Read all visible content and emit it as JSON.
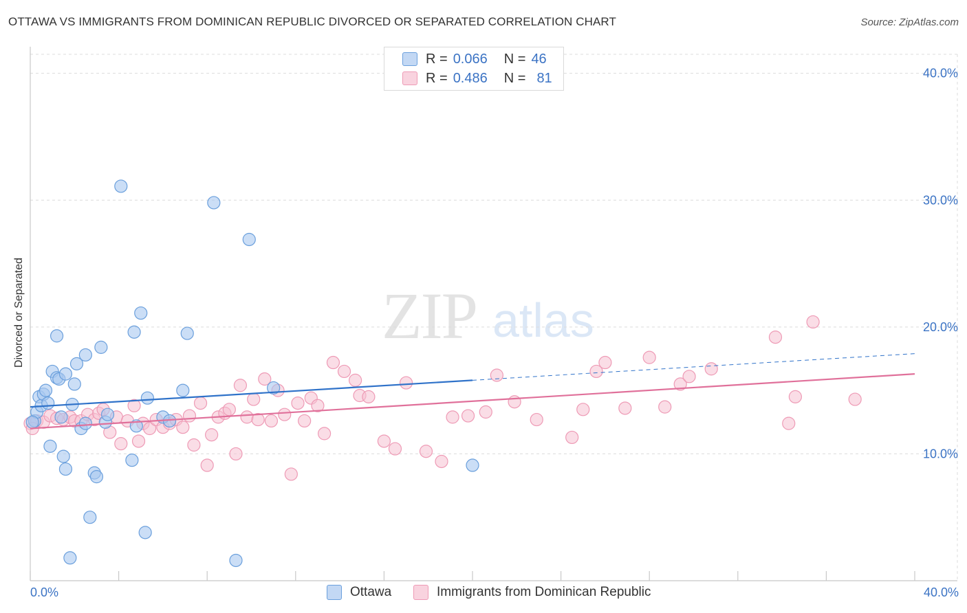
{
  "title": "OTTAWA VS IMMIGRANTS FROM DOMINICAN REPUBLIC DIVORCED OR SEPARATED CORRELATION CHART",
  "source": "Source: ZipAtlas.com",
  "watermark": {
    "zip": "ZIP",
    "atlas": "atlas"
  },
  "colors": {
    "ottawa_fill": "#a9c8f0",
    "ottawa_stroke": "#6a9fdc",
    "ottawa_line": "#2f72c9",
    "dom_fill": "#f6c1d1",
    "dom_stroke": "#ee9ab5",
    "dom_line": "#e0709a",
    "axis_label": "#3b73c4",
    "grid": "#dcdcdc"
  },
  "legend": {
    "rows": [
      {
        "r_label": "R =",
        "r_value": "0.066",
        "n_label": "N =",
        "n_value": "46"
      },
      {
        "r_label": "R =",
        "r_value": "0.486",
        "n_label": "N =",
        "n_value": "81"
      }
    ]
  },
  "bottom_legend": [
    "Ottawa",
    "Immigrants from Dominican Republic"
  ],
  "chart_data": {
    "type": "scatter",
    "title": "OTTAWA VS IMMIGRANTS FROM DOMINICAN REPUBLIC DIVORCED OR SEPARATED CORRELATION CHART",
    "xlabel": "",
    "ylabel": "Divorced or Separated",
    "x_tick_labels": [
      "0.0%",
      "40.0%"
    ],
    "y_tick_labels": [
      "10.0%",
      "20.0%",
      "30.0%",
      "40.0%"
    ],
    "y_ticks": [
      10,
      20,
      30,
      40
    ],
    "xlim": [
      0,
      40
    ],
    "ylim": [
      0,
      41.5
    ],
    "grid": true,
    "legend_position": "top-center",
    "series": [
      {
        "name": "Ottawa",
        "r": 0.066,
        "n": 46,
        "trend": {
          "x": [
            0,
            20
          ],
          "y": [
            13.7,
            15.8
          ]
        },
        "trend_dashed": {
          "x": [
            20,
            40
          ],
          "y": [
            15.8,
            17.9
          ]
        },
        "points": [
          [
            0.2,
            12.6
          ],
          [
            0.3,
            13.3
          ],
          [
            0.4,
            14.5
          ],
          [
            0.5,
            13.8
          ],
          [
            0.6,
            14.7
          ],
          [
            0.7,
            15.0
          ],
          [
            0.8,
            14.0
          ],
          [
            0.9,
            10.6
          ],
          [
            1.0,
            16.5
          ],
          [
            1.2,
            16.0
          ],
          [
            1.2,
            19.3
          ],
          [
            1.3,
            15.9
          ],
          [
            1.4,
            12.9
          ],
          [
            1.5,
            9.8
          ],
          [
            1.6,
            8.8
          ],
          [
            1.6,
            16.3
          ],
          [
            1.8,
            1.8
          ],
          [
            1.9,
            13.9
          ],
          [
            2.0,
            15.5
          ],
          [
            2.1,
            17.1
          ],
          [
            2.3,
            12.0
          ],
          [
            2.5,
            17.8
          ],
          [
            2.5,
            12.4
          ],
          [
            2.7,
            5.0
          ],
          [
            2.9,
            8.5
          ],
          [
            3.0,
            8.2
          ],
          [
            3.2,
            18.4
          ],
          [
            3.4,
            12.5
          ],
          [
            3.5,
            13.1
          ],
          [
            4.1,
            31.1
          ],
          [
            4.6,
            9.5
          ],
          [
            4.7,
            19.6
          ],
          [
            4.8,
            12.2
          ],
          [
            5.0,
            21.1
          ],
          [
            5.2,
            3.8
          ],
          [
            5.3,
            14.4
          ],
          [
            6.0,
            12.9
          ],
          [
            6.3,
            12.6
          ],
          [
            6.9,
            15.0
          ],
          [
            7.1,
            19.5
          ],
          [
            8.3,
            29.8
          ],
          [
            9.3,
            1.6
          ],
          [
            9.9,
            26.9
          ],
          [
            11.0,
            15.2
          ],
          [
            20.0,
            9.1
          ],
          [
            0.1,
            12.5
          ]
        ]
      },
      {
        "name": "Immigrants from Dominican Republic",
        "r": 0.486,
        "n": 81,
        "trend": {
          "x": [
            0,
            40
          ],
          "y": [
            12.0,
            16.3
          ]
        },
        "points": [
          [
            0.0,
            12.4
          ],
          [
            0.3,
            12.6
          ],
          [
            0.6,
            12.5
          ],
          [
            0.9,
            13.0
          ],
          [
            1.2,
            12.8
          ],
          [
            1.5,
            12.7
          ],
          [
            1.8,
            12.9
          ],
          [
            2.0,
            12.6
          ],
          [
            2.3,
            12.6
          ],
          [
            2.6,
            13.1
          ],
          [
            2.9,
            12.7
          ],
          [
            3.1,
            13.2
          ],
          [
            3.3,
            13.5
          ],
          [
            3.6,
            11.7
          ],
          [
            3.9,
            12.9
          ],
          [
            4.1,
            10.8
          ],
          [
            4.4,
            12.6
          ],
          [
            4.7,
            13.8
          ],
          [
            4.9,
            11.0
          ],
          [
            5.1,
            12.4
          ],
          [
            5.4,
            12.0
          ],
          [
            5.7,
            12.7
          ],
          [
            6.0,
            12.1
          ],
          [
            6.3,
            12.4
          ],
          [
            6.6,
            12.7
          ],
          [
            6.9,
            12.1
          ],
          [
            7.2,
            13.0
          ],
          [
            7.4,
            10.7
          ],
          [
            7.7,
            14.0
          ],
          [
            8.0,
            9.1
          ],
          [
            8.2,
            11.5
          ],
          [
            8.5,
            12.9
          ],
          [
            8.8,
            13.2
          ],
          [
            9.0,
            13.5
          ],
          [
            9.3,
            10.0
          ],
          [
            9.5,
            15.4
          ],
          [
            9.8,
            12.9
          ],
          [
            10.1,
            14.3
          ],
          [
            10.3,
            12.7
          ],
          [
            10.6,
            15.9
          ],
          [
            10.9,
            12.6
          ],
          [
            11.2,
            15.0
          ],
          [
            11.5,
            13.1
          ],
          [
            11.8,
            8.4
          ],
          [
            12.1,
            14.0
          ],
          [
            12.4,
            12.6
          ],
          [
            12.7,
            14.4
          ],
          [
            13.0,
            13.8
          ],
          [
            13.3,
            11.6
          ],
          [
            13.7,
            17.2
          ],
          [
            14.2,
            16.5
          ],
          [
            14.7,
            15.8
          ],
          [
            14.9,
            14.6
          ],
          [
            15.3,
            14.5
          ],
          [
            16.0,
            11.0
          ],
          [
            16.5,
            10.4
          ],
          [
            17.0,
            15.6
          ],
          [
            17.9,
            10.2
          ],
          [
            18.6,
            9.4
          ],
          [
            19.1,
            12.9
          ],
          [
            19.8,
            13.0
          ],
          [
            20.6,
            13.3
          ],
          [
            21.1,
            16.2
          ],
          [
            21.9,
            14.1
          ],
          [
            22.9,
            12.7
          ],
          [
            24.5,
            11.3
          ],
          [
            25.0,
            13.5
          ],
          [
            25.6,
            16.5
          ],
          [
            26.0,
            17.2
          ],
          [
            26.9,
            13.6
          ],
          [
            28.0,
            17.6
          ],
          [
            28.7,
            13.7
          ],
          [
            29.4,
            15.5
          ],
          [
            29.8,
            16.1
          ],
          [
            30.8,
            16.7
          ],
          [
            33.7,
            19.2
          ],
          [
            34.3,
            12.4
          ],
          [
            34.6,
            14.5
          ],
          [
            35.4,
            20.4
          ],
          [
            37.3,
            14.3
          ],
          [
            0.1,
            12.0
          ]
        ]
      }
    ]
  }
}
